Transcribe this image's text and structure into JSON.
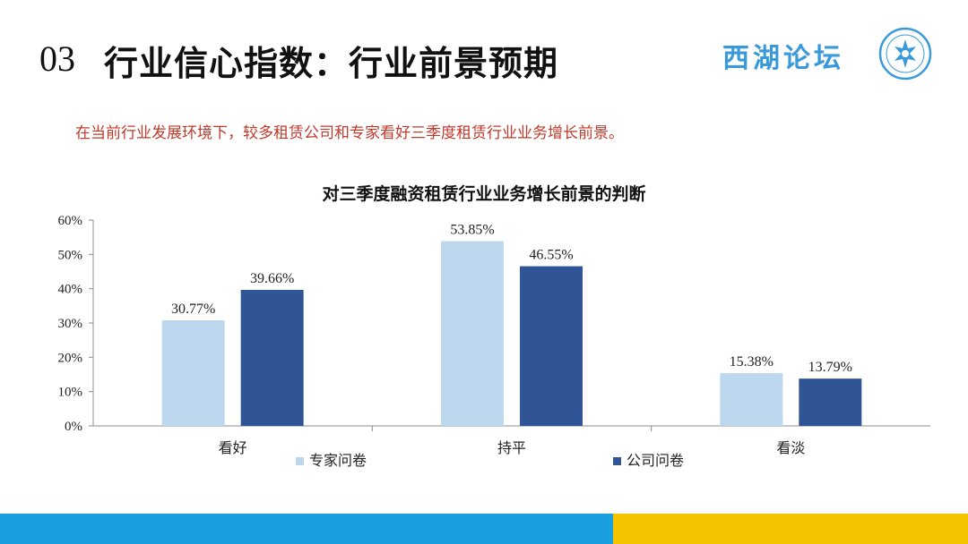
{
  "header": {
    "section_number": "03",
    "title": "行业信心指数：行业前景预期",
    "logo_text": "西湖论坛"
  },
  "subtitle": "在当前行业发展环境下，较多租赁公司和专家看好三季度租赁行业业务增长前景。",
  "colors": {
    "series_expert": "#bdd7ee",
    "series_company": "#2f5597",
    "subtitle": "#c0392b",
    "bottom_bar_blue": "#1aa0e0",
    "bottom_bar_yellow": "#f5c400",
    "logo": "#3a9ad9"
  },
  "chart_data": {
    "type": "bar",
    "title": "对三季度融资租赁行业业务增长前景的判断",
    "categories": [
      "看好",
      "持平",
      "看淡"
    ],
    "series": [
      {
        "name": "专家问卷",
        "values": [
          30.77,
          53.85,
          15.38
        ],
        "labels": [
          "30.77%",
          "53.85%",
          "15.38%"
        ]
      },
      {
        "name": "公司问卷",
        "values": [
          39.66,
          46.55,
          13.79
        ],
        "labels": [
          "39.66%",
          "46.55%",
          "13.79%"
        ]
      }
    ],
    "yticks": [
      "0%",
      "10%",
      "20%",
      "30%",
      "40%",
      "50%",
      "60%"
    ],
    "ylim": [
      0,
      60
    ],
    "grid": false,
    "legend_position": "bottom"
  }
}
